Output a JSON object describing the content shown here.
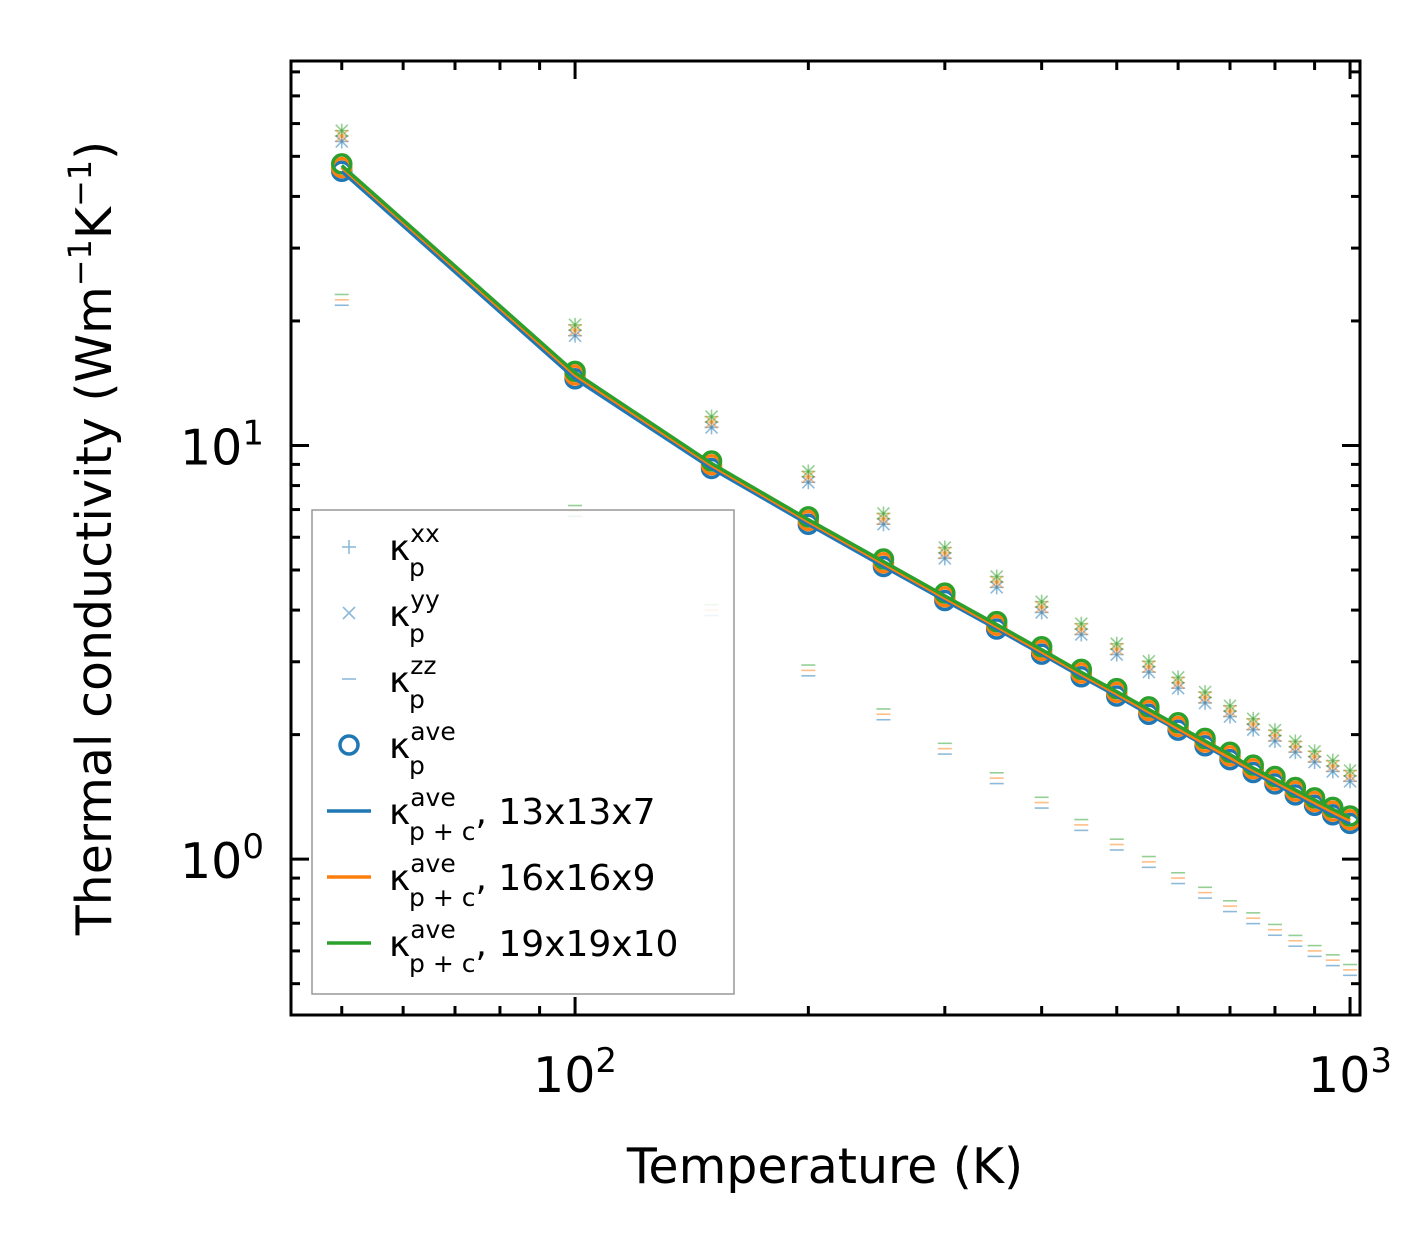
{
  "chart_data": {
    "type": "scatter",
    "xscale": "log",
    "yscale": "log",
    "xlabel": "Temperature (K)",
    "ylabel_parts": {
      "main": "Thermal conductivity (Wm",
      "exp1": "−1",
      "mid": "K",
      "exp2": "−1",
      "end": ")"
    },
    "xlim": [
      43,
      1030
    ],
    "ylim": [
      0.42,
      85
    ],
    "xticks": [
      {
        "value": 100,
        "base": "10",
        "exp": "2"
      },
      {
        "value": 1000,
        "base": "10",
        "exp": "3"
      }
    ],
    "yticks": [
      {
        "value": 1,
        "base": "10",
        "exp": "0"
      },
      {
        "value": 10,
        "base": "10",
        "exp": "1"
      }
    ],
    "x": [
      50,
      100,
      150,
      200,
      250,
      300,
      350,
      400,
      450,
      500,
      550,
      600,
      650,
      700,
      750,
      800,
      850,
      900,
      950,
      1000
    ],
    "series": [
      {
        "name": "κ_p^xx",
        "marker": "+",
        "color": "#1f77b4",
        "values": [
          56,
          19.0,
          11.4,
          8.4,
          6.65,
          5.5,
          4.68,
          4.07,
          3.6,
          3.22,
          2.92,
          2.67,
          2.46,
          2.28,
          2.12,
          1.99,
          1.87,
          1.77,
          1.68,
          1.59
        ]
      },
      {
        "name": "κ_p^yy",
        "marker": "x",
        "color": "#1f77b4",
        "values": [
          56,
          19.0,
          11.4,
          8.4,
          6.65,
          5.5,
          4.68,
          4.07,
          3.6,
          3.22,
          2.92,
          2.67,
          2.46,
          2.28,
          2.12,
          1.99,
          1.87,
          1.77,
          1.68,
          1.59
        ]
      },
      {
        "name": "κ_p^zz",
        "marker": "_",
        "color": "#1f77b4",
        "values": [
          22.5,
          6.95,
          4.0,
          2.86,
          2.24,
          1.85,
          1.57,
          1.37,
          1.21,
          1.085,
          0.985,
          0.9,
          0.83,
          0.77,
          0.72,
          0.675,
          0.635,
          0.6,
          0.57,
          0.54
        ]
      },
      {
        "name": "κ_p^ave",
        "marker": "o",
        "color": "#1f77b4",
        "values": [
          46,
          14.5,
          8.8,
          6.45,
          5.1,
          4.22,
          3.6,
          3.13,
          2.76,
          2.48,
          2.24,
          2.05,
          1.88,
          1.74,
          1.62,
          1.52,
          1.43,
          1.35,
          1.28,
          1.22
        ]
      },
      {
        "name": "κ_p+c^ave, 13x13x7",
        "marker": "line",
        "color": "#1f77b4",
        "values": [
          46,
          14.5,
          8.8,
          6.45,
          5.1,
          4.22,
          3.6,
          3.13,
          2.76,
          2.48,
          2.24,
          2.05,
          1.88,
          1.74,
          1.62,
          1.52,
          1.43,
          1.35,
          1.28,
          1.22
        ]
      },
      {
        "name": "κ_p+c^ave, 16x16x9",
        "marker": "line",
        "color": "#ff7f0e",
        "values": [
          47,
          14.8,
          8.95,
          6.55,
          5.18,
          4.28,
          3.65,
          3.17,
          2.8,
          2.51,
          2.27,
          2.07,
          1.9,
          1.76,
          1.64,
          1.54,
          1.45,
          1.37,
          1.3,
          1.24
        ]
      },
      {
        "name": "κ_p+c^ave, 19x19x10",
        "marker": "line",
        "color": "#2ca02c",
        "values": [
          47.5,
          15.0,
          9.05,
          6.62,
          5.24,
          4.33,
          3.69,
          3.21,
          2.83,
          2.54,
          2.3,
          2.1,
          1.93,
          1.79,
          1.66,
          1.56,
          1.47,
          1.39,
          1.32,
          1.26
        ]
      }
    ],
    "legend_position": "lower-left",
    "legend": [
      {
        "marker": "+",
        "color": "#1f77b4",
        "sym": "κ",
        "sup": "xx",
        "sub": "p",
        "rest": ""
      },
      {
        "marker": "x",
        "color": "#1f77b4",
        "sym": "κ",
        "sup": "yy",
        "sub": "p",
        "rest": ""
      },
      {
        "marker": "_",
        "color": "#1f77b4",
        "sym": "κ",
        "sup": "zz",
        "sub": "p",
        "rest": ""
      },
      {
        "marker": "o",
        "color": "#1f77b4",
        "sym": "κ",
        "sup": "ave",
        "sub": "p",
        "rest": ""
      },
      {
        "marker": "line",
        "color": "#1f77b4",
        "sym": "κ",
        "sup": "ave",
        "sub": "p + c",
        "rest": ", 13x13x7"
      },
      {
        "marker": "line",
        "color": "#ff7f0e",
        "sym": "κ",
        "sup": "ave",
        "sub": "p + c",
        "rest": ", 16x16x9"
      },
      {
        "marker": "line",
        "color": "#2ca02c",
        "sym": "κ",
        "sup": "ave",
        "sub": "p + c",
        "rest": ", 19x19x10"
      }
    ]
  }
}
